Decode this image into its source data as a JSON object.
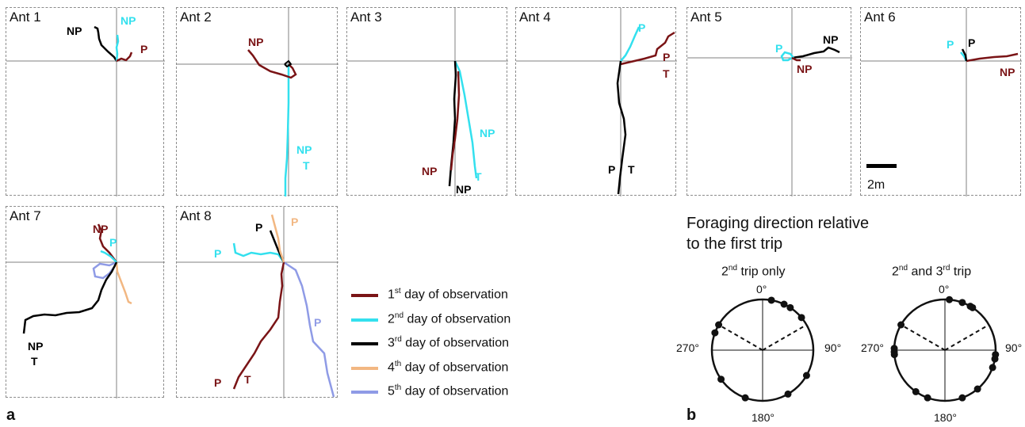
{
  "colors": {
    "day1": "#7a1416",
    "day2": "#33e0ee",
    "day3": "#000000",
    "day4": "#f2b782",
    "day5": "#8f9be6",
    "axis": "#808080"
  },
  "panels": [
    {
      "title": "Ant 1",
      "labels": [
        {
          "text": "NP",
          "color": "#000000"
        },
        {
          "text": "NP",
          "color": "#33e0ee"
        },
        {
          "text": "P",
          "color": "#7a1416"
        }
      ]
    },
    {
      "title": "Ant 2",
      "labels": [
        {
          "text": "NP",
          "color": "#7a1416"
        },
        {
          "text": "NP",
          "color": "#33e0ee"
        },
        {
          "text": "T",
          "color": "#33e0ee"
        }
      ]
    },
    {
      "title": "Ant 3",
      "labels": [
        {
          "text": "NP",
          "color": "#33e0ee"
        },
        {
          "text": "T",
          "color": "#33e0ee"
        },
        {
          "text": "NP",
          "color": "#7a1416"
        },
        {
          "text": "NP",
          "color": "#000000"
        }
      ]
    },
    {
      "title": "Ant 4",
      "labels": [
        {
          "text": "P",
          "color": "#33e0ee"
        },
        {
          "text": "P",
          "color": "#7a1416"
        },
        {
          "text": "T",
          "color": "#7a1416"
        },
        {
          "text": "P",
          "color": "#000000"
        },
        {
          "text": "T",
          "color": "#000000"
        }
      ]
    },
    {
      "title": "Ant 5",
      "labels": [
        {
          "text": "NP",
          "color": "#000000"
        },
        {
          "text": "P",
          "color": "#33e0ee"
        },
        {
          "text": "NP",
          "color": "#7a1416"
        }
      ]
    },
    {
      "title": "Ant 6",
      "labels": [
        {
          "text": "P",
          "color": "#33e0ee"
        },
        {
          "text": "P",
          "color": "#000000"
        },
        {
          "text": "NP",
          "color": "#7a1416"
        }
      ]
    },
    {
      "title": "Ant 7",
      "labels": [
        {
          "text": "NP",
          "color": "#7a1416"
        },
        {
          "text": "P",
          "color": "#33e0ee"
        },
        {
          "text": "NP",
          "color": "#000000"
        },
        {
          "text": "T",
          "color": "#000000"
        }
      ]
    },
    {
      "title": "Ant 8",
      "labels": [
        {
          "text": "P",
          "color": "#000000"
        },
        {
          "text": "P",
          "color": "#f2b782"
        },
        {
          "text": "P",
          "color": "#33e0ee"
        },
        {
          "text": "P",
          "color": "#8f9be6"
        },
        {
          "text": "P",
          "color": "#7a1416"
        },
        {
          "text": "T",
          "color": "#7a1416"
        }
      ]
    }
  ],
  "scale_bar": {
    "label": "2m"
  },
  "legend": [
    {
      "ordinal": "1",
      "suffix": "st",
      "text": " day of observation",
      "color": "#7a1416"
    },
    {
      "ordinal": "2",
      "suffix": "nd",
      "text": " day of observation",
      "color": "#33e0ee"
    },
    {
      "ordinal": "3",
      "suffix": "rd",
      "text": " day of observation",
      "color": "#000000"
    },
    {
      "ordinal": "4",
      "suffix": "th",
      "text": " day of observation",
      "color": "#f2b782"
    },
    {
      "ordinal": "5",
      "suffix": "th",
      "text": " day of observation",
      "color": "#8f9be6"
    }
  ],
  "circular": {
    "title_line1": "Foraging direction relative",
    "title_line2": "to the first trip",
    "plots": [
      {
        "title_pre": "2",
        "title_sup": "nd",
        "title_post": " trip only",
        "points_deg": [
          10,
          25,
          33,
          50,
          120,
          150,
          200,
          235,
          290,
          300
        ]
      },
      {
        "title_pre": "2",
        "title_sup": "nd",
        "title_post": " and 3",
        "title_sup2": "rd",
        "title_post2": " trip",
        "points_deg": [
          5,
          20,
          30,
          33,
          95,
          100,
          110,
          140,
          160,
          200,
          215,
          265,
          268,
          272,
          300
        ]
      }
    ],
    "mean_lines_deg": [
      60,
      300
    ],
    "degree_labels": {
      "top": "0°",
      "right": "90°",
      "bottom": "180°",
      "left": "270°"
    }
  },
  "figure_letters": {
    "a": "a",
    "b": "b"
  }
}
